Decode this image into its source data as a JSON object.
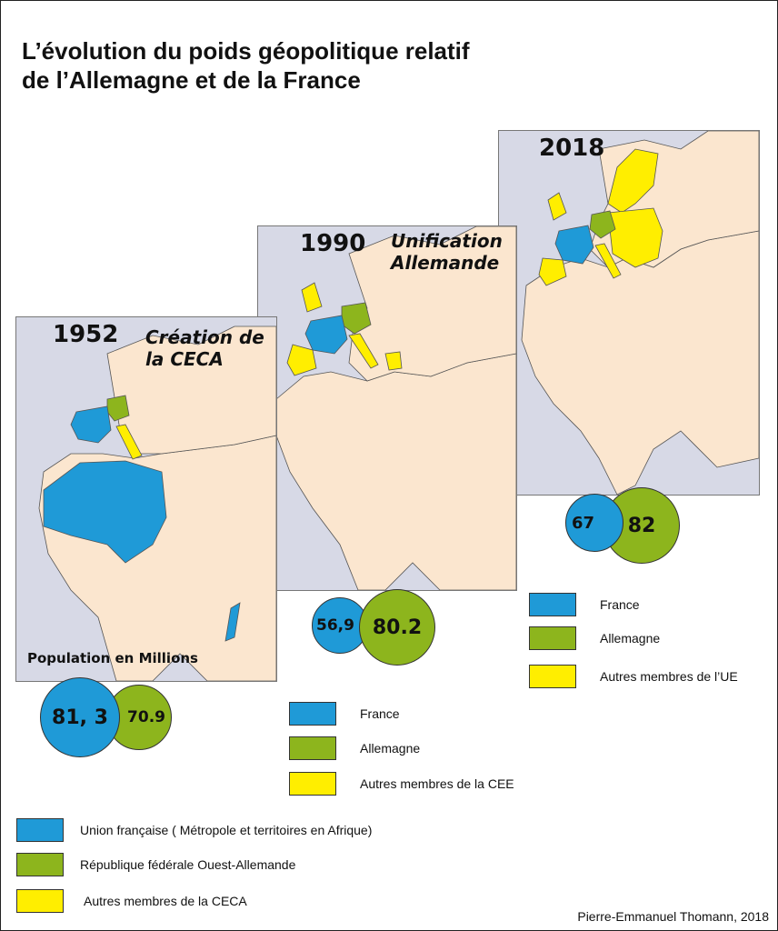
{
  "title": {
    "line1": "L’évolution du poids géopolitique relatif",
    "line2": "de l’Allemagne et de la France"
  },
  "maps": {
    "m1952": {
      "year": "1952",
      "caption1": "Création de",
      "caption2": "la CECA",
      "population_label": "Population en Millions",
      "france_pop": "81, 3",
      "germany_pop": "70.9"
    },
    "m1990": {
      "year": "1990",
      "caption1": "Unification",
      "caption2": "Allemande",
      "france_pop": "56,9",
      "germany_pop": "80.2"
    },
    "m2018": {
      "year": "2018",
      "france_pop": "67",
      "germany_pop": "82"
    }
  },
  "legend_2018": [
    {
      "label": "France",
      "color": "#1f9ad7"
    },
    {
      "label": "Allemagne",
      "color": "#8db51d"
    },
    {
      "label": "Autres membres de  l’UE",
      "color": "#ffee00"
    }
  ],
  "legend_1990": [
    {
      "label": "France",
      "color": "#1f9ad7"
    },
    {
      "label": "Allemagne",
      "color": "#8db51d"
    },
    {
      "label": "Autres membres de la CEE",
      "color": "#ffee00"
    }
  ],
  "legend_1952": [
    {
      "label": "Union française ( Métropole et territoires en Afrique)",
      "color": "#1f9ad7"
    },
    {
      "label": "République fédérale Ouest-Allemande",
      "color": "#8db51d"
    },
    {
      "label": "Autres membres de la CECA",
      "color": "#ffee00"
    }
  ],
  "credit": "Pierre-Emmanuel Thomann, 2018",
  "colors": {
    "sea": "#d7d9e6",
    "land": "#fbe6cf",
    "france": "#1f9ad7",
    "germany": "#8db51d",
    "member": "#ffee00"
  }
}
